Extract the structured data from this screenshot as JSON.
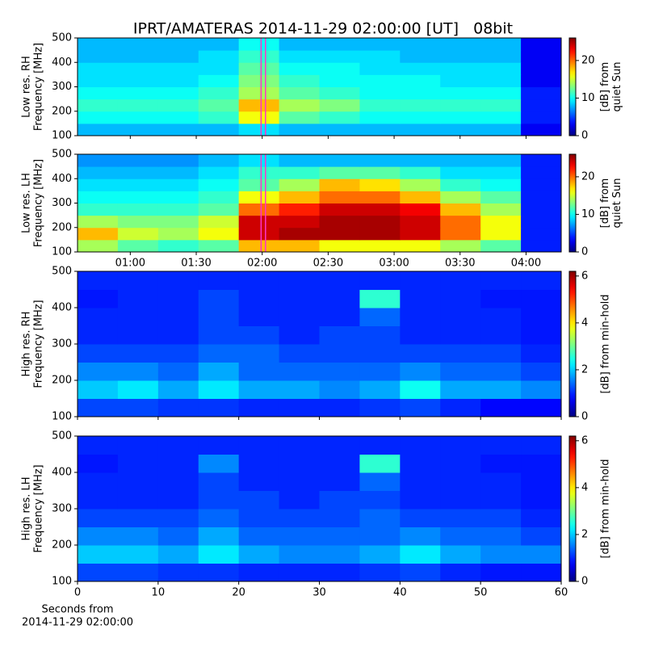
{
  "title": "IPRT/AMATERAS 2014-11-29 02:00:00 [UT]   08bit",
  "colormap": "jet",
  "chart_data": [
    {
      "type": "heatmap",
      "ylabel": [
        "Low res. RH",
        "Frequency [MHz]"
      ],
      "xlim": [
        36,
        256
      ],
      "xticks": [
        60,
        90,
        120,
        150,
        180,
        210,
        240
      ],
      "show_xtick_labels": false,
      "ylim": [
        100,
        500
      ],
      "yticks": [
        100,
        200,
        300,
        400,
        500
      ],
      "clim": [
        0,
        26
      ],
      "cticks": [
        0,
        10,
        20
      ],
      "clabel": [
        "[dB] from",
        "quiet Sun"
      ],
      "highlight": [
        119.5,
        121.5
      ],
      "highlight_color": "#ff33cc",
      "z": [
        [
          8,
          8,
          8,
          8,
          9,
          8,
          8,
          8,
          8,
          8,
          8,
          3
        ],
        [
          10,
          10,
          10,
          11,
          16,
          12,
          11,
          10,
          10,
          10,
          10,
          4
        ],
        [
          11,
          11,
          11,
          12,
          18,
          14,
          13,
          11,
          11,
          11,
          11,
          4
        ],
        [
          10,
          10,
          10,
          11,
          14,
          12,
          11,
          10,
          10,
          10,
          10,
          4
        ],
        [
          9,
          9,
          9,
          10,
          13,
          11,
          10,
          10,
          10,
          9,
          9,
          3
        ],
        [
          9,
          9,
          9,
          9,
          12,
          10,
          10,
          9,
          9,
          9,
          9,
          3
        ],
        [
          8,
          8,
          8,
          9,
          11,
          9,
          9,
          9,
          8,
          8,
          8,
          3
        ],
        [
          8,
          8,
          8,
          8,
          10,
          8,
          8,
          8,
          8,
          8,
          8,
          3
        ]
      ]
    },
    {
      "type": "heatmap",
      "ylabel": [
        "Low res. LH",
        "Frequency [MHz]"
      ],
      "xlim": [
        36,
        256
      ],
      "xticks": [
        {
          "value": 60,
          "label": "01:00"
        },
        {
          "value": 90,
          "label": "01:30"
        },
        {
          "value": 120,
          "label": "02:00"
        },
        {
          "value": 150,
          "label": "02:30"
        },
        {
          "value": 180,
          "label": "03:00"
        },
        {
          "value": 210,
          "label": "03:30"
        },
        {
          "value": 240,
          "label": "04:00"
        }
      ],
      "show_xtick_labels": true,
      "ylim": [
        100,
        500
      ],
      "yticks": [
        100,
        200,
        300,
        400,
        500
      ],
      "clim": [
        0,
        26
      ],
      "cticks": [
        0,
        10,
        20
      ],
      "clabel": [
        "[dB] from",
        "quiet Sun"
      ],
      "highlight": [
        119.5,
        121.5
      ],
      "highlight_color": "#ff33cc",
      "z": [
        [
          14,
          12,
          11,
          12,
          18,
          18,
          16,
          16,
          16,
          14,
          12,
          4
        ],
        [
          18,
          15,
          14,
          16,
          24,
          25,
          25,
          25,
          24,
          20,
          16,
          4
        ],
        [
          14,
          13,
          13,
          15,
          24,
          24,
          25,
          25,
          24,
          20,
          16,
          4
        ],
        [
          11,
          11,
          11,
          12,
          20,
          22,
          24,
          24,
          23,
          18,
          14,
          4
        ],
        [
          10,
          10,
          10,
          11,
          16,
          18,
          20,
          20,
          18,
          14,
          12,
          4
        ],
        [
          9,
          9,
          9,
          10,
          12,
          14,
          18,
          17,
          14,
          11,
          10,
          4
        ],
        [
          8,
          8,
          8,
          9,
          11,
          11,
          12,
          12,
          11,
          9,
          9,
          4
        ],
        [
          7,
          7,
          7,
          8,
          9,
          8,
          8,
          8,
          8,
          8,
          8,
          4
        ]
      ]
    },
    {
      "type": "heatmap",
      "ylabel": [
        "High res. RH",
        "Frequency [MHz]"
      ],
      "xlim": [
        0,
        60
      ],
      "xticks": [
        0,
        10,
        20,
        30,
        40,
        50,
        60
      ],
      "show_xtick_labels": false,
      "ylim": [
        100,
        500
      ],
      "yticks": [
        100,
        200,
        300,
        400,
        500
      ],
      "clim": [
        0,
        6.2
      ],
      "cticks": [
        0,
        2,
        4,
        6
      ],
      "clabel": [
        "[dB] from min-hold"
      ],
      "z": [
        [
          1.2,
          1.2,
          1.1,
          1.1,
          1.0,
          1.0,
          1.0,
          1.1,
          1.2,
          1.0,
          0.8,
          0.8
        ],
        [
          2.0,
          2.2,
          1.8,
          2.2,
          1.8,
          1.8,
          1.6,
          1.8,
          2.4,
          1.8,
          1.8,
          1.6
        ],
        [
          1.6,
          1.6,
          1.4,
          1.8,
          1.4,
          1.4,
          1.4,
          1.4,
          1.6,
          1.4,
          1.4,
          1.2
        ],
        [
          1.2,
          1.2,
          1.2,
          1.4,
          1.4,
          1.2,
          1.2,
          1.2,
          1.2,
          1.2,
          1.2,
          1.0
        ],
        [
          1.0,
          1.0,
          1.0,
          1.2,
          1.2,
          1.0,
          1.2,
          1.2,
          1.0,
          1.0,
          1.0,
          0.9
        ],
        [
          1.0,
          1.0,
          1.0,
          1.2,
          1.0,
          1.0,
          1.0,
          1.4,
          1.0,
          1.0,
          1.0,
          0.9
        ],
        [
          0.9,
          1.0,
          1.0,
          1.2,
          1.0,
          1.0,
          1.0,
          2.6,
          1.0,
          1.0,
          0.9,
          0.9
        ],
        [
          1.0,
          1.0,
          1.0,
          1.0,
          1.0,
          1.0,
          1.0,
          1.0,
          1.0,
          1.0,
          1.0,
          1.0
        ]
      ]
    },
    {
      "type": "heatmap",
      "ylabel": [
        "High res. LH",
        "Frequency [MHz]"
      ],
      "xlim": [
        0,
        60
      ],
      "xticks": [
        0,
        10,
        20,
        30,
        40,
        50,
        60
      ],
      "show_xtick_labels": true,
      "xlabel": [
        "Seconds from",
        "2014-11-29 02:00:00"
      ],
      "ylim": [
        100,
        500
      ],
      "yticks": [
        100,
        200,
        300,
        400,
        500
      ],
      "clim": [
        0,
        6.2
      ],
      "cticks": [
        0,
        2,
        4,
        6
      ],
      "clabel": [
        "[dB] from min-hold"
      ],
      "z": [
        [
          1.2,
          1.2,
          1.1,
          1.1,
          1.0,
          1.0,
          1.0,
          1.1,
          1.2,
          1.0,
          0.9,
          0.9
        ],
        [
          2.0,
          2.0,
          1.8,
          2.2,
          1.8,
          1.6,
          1.6,
          1.8,
          2.2,
          1.8,
          1.6,
          1.6
        ],
        [
          1.6,
          1.6,
          1.4,
          1.8,
          1.4,
          1.4,
          1.4,
          1.4,
          1.6,
          1.4,
          1.4,
          1.2
        ],
        [
          1.2,
          1.2,
          1.2,
          1.4,
          1.2,
          1.2,
          1.2,
          1.4,
          1.2,
          1.2,
          1.2,
          1.0
        ],
        [
          1.0,
          1.0,
          1.0,
          1.2,
          1.2,
          1.0,
          1.2,
          1.2,
          1.0,
          1.0,
          1.0,
          0.9
        ],
        [
          1.0,
          1.0,
          1.0,
          1.2,
          1.0,
          1.0,
          1.0,
          1.4,
          1.0,
          1.0,
          1.0,
          0.9
        ],
        [
          0.9,
          1.0,
          1.0,
          1.6,
          1.0,
          1.0,
          1.0,
          2.6,
          1.0,
          1.0,
          0.9,
          0.9
        ],
        [
          1.0,
          1.0,
          1.0,
          1.0,
          1.0,
          1.0,
          1.0,
          1.0,
          1.0,
          1.0,
          1.0,
          1.0
        ]
      ]
    }
  ]
}
